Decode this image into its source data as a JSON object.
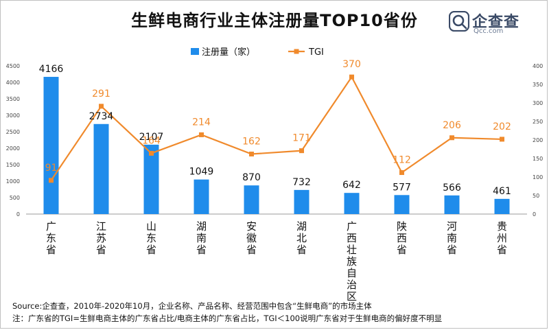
{
  "chart_data": {
    "type": "bar",
    "title": "生鲜电商行业主体注册量TOP10省份",
    "categories": [
      "广东省",
      "江苏省",
      "山东省",
      "湖南省",
      "安徽省",
      "湖北省",
      "广西壮族自治区",
      "陕西省",
      "河南省",
      "贵州省"
    ],
    "series": [
      {
        "name": "注册量（家）",
        "type": "bar",
        "axis": "left",
        "color": "#1f8ceb",
        "values": [
          4166,
          2734,
          2107,
          1049,
          870,
          732,
          642,
          577,
          566,
          461
        ]
      },
      {
        "name": "TGI",
        "type": "line",
        "axis": "right",
        "color": "#f08a2c",
        "values": [
          91,
          291,
          164,
          214,
          162,
          171,
          370,
          112,
          206,
          202
        ]
      }
    ],
    "y_left": {
      "min": 0,
      "max": 4500,
      "step": 500,
      "ticks": [
        "0",
        "500",
        "1000",
        "1500",
        "2000",
        "2500",
        "3000",
        "3500",
        "4000",
        "4500"
      ]
    },
    "y_right": {
      "min": 0,
      "max": 400,
      "step": 50,
      "ticks": [
        "0",
        "50",
        "100",
        "150",
        "200",
        "250",
        "300",
        "350",
        "400"
      ]
    },
    "legend_position": "top-center",
    "grid": false
  },
  "header": {
    "title": "生鲜电商行业主体注册量TOP10省份"
  },
  "logo": {
    "name": "企查查",
    "sub": "Qcc.com",
    "color": "#3a4a66"
  },
  "footer": {
    "source": "Source:企查查，2010年-2020年10月，企业名称、产品名称、经营范围中包含“生鲜电商”的市场主体",
    "note": "注：广东省的TGI=生鲜电商主体的广东省占比/电商主体的广东省占比，TGI＜100说明广东省对于生鲜电商的偏好度不明显"
  }
}
